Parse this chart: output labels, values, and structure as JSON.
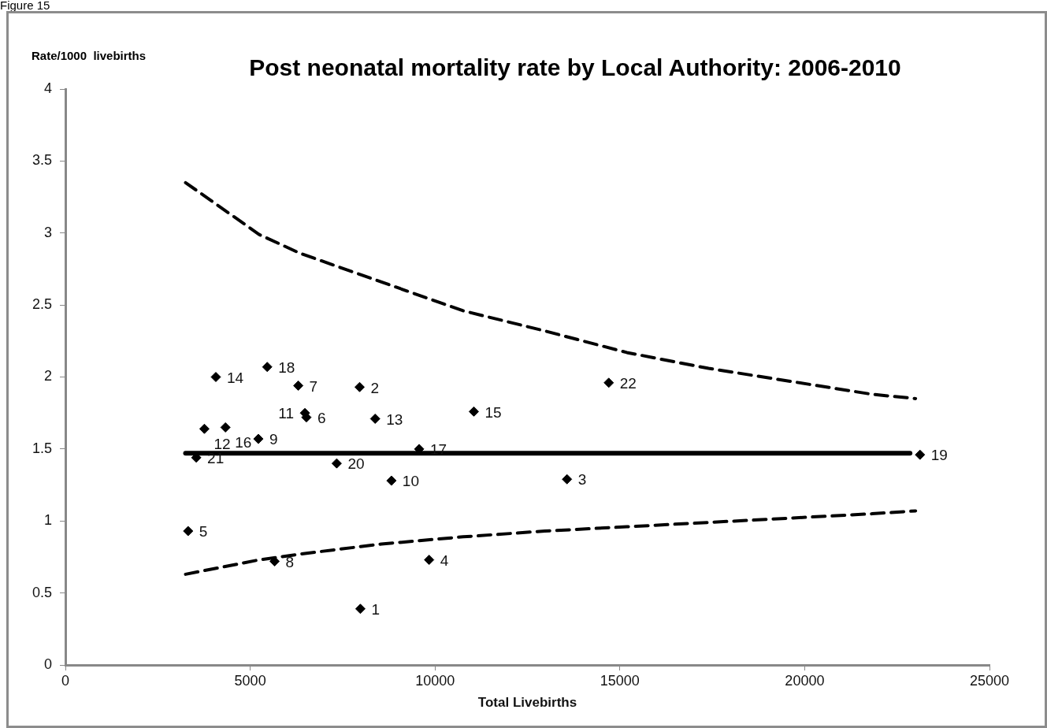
{
  "chart_data": {
    "type": "scatter",
    "title": "Post neonatal mortality rate by Local Authority: 2006-2010",
    "xlabel": "Total Livebirths",
    "ylabel": "Rate/1000  livebirths",
    "annotations": [
      "Figure 15",
      {
        "text": "1",
        "x": 7980,
        "y": 0.39
      },
      {
        "text": "2",
        "x": 7960,
        "y": 1.93
      },
      {
        "text": "3",
        "x": 13570,
        "y": 1.29
      },
      {
        "text": "4",
        "x": 9840,
        "y": 0.73
      },
      {
        "text": "5",
        "x": 3320,
        "y": 0.93
      },
      {
        "text": "6",
        "x": 6520,
        "y": 1.72
      },
      {
        "text": "7",
        "x": 6300,
        "y": 1.94
      },
      {
        "text": "8",
        "x": 5660,
        "y": 0.72
      },
      {
        "text": "9",
        "x": 5220,
        "y": 1.57
      },
      {
        "text": "10",
        "x": 8820,
        "y": 1.28
      },
      {
        "text": "11",
        "x": 6480,
        "y": 1.75
      },
      {
        "text": "12",
        "x": 3760,
        "y": 1.64
      },
      {
        "text": "13",
        "x": 8380,
        "y": 1.71
      },
      {
        "text": "14",
        "x": 4070,
        "y": 2.0
      },
      {
        "text": "15",
        "x": 11050,
        "y": 1.76
      },
      {
        "text": "16",
        "x": 4330,
        "y": 1.65
      },
      {
        "text": "17",
        "x": 9570,
        "y": 1.5
      },
      {
        "text": "18",
        "x": 5460,
        "y": 2.07
      },
      {
        "text": "19",
        "x": 23120,
        "y": 1.46
      },
      {
        "text": "20",
        "x": 7340,
        "y": 1.4
      },
      {
        "text": "21",
        "x": 3540,
        "y": 1.44
      },
      {
        "text": "22",
        "x": 14700,
        "y": 1.96
      }
    ],
    "xlim": [
      0,
      25000
    ],
    "xticks": [
      0,
      5000,
      10000,
      15000,
      20000,
      25000
    ],
    "ylim": [
      0,
      4
    ],
    "yticks": [
      0,
      0.5,
      1,
      1.5,
      2,
      2.5,
      3,
      3.5,
      4
    ],
    "marker": "diamond",
    "series": [
      {
        "color": "#000000",
        "x": [
          7980,
          7960,
          13570,
          9840,
          3320,
          6520,
          6300,
          5660,
          5220,
          8820,
          6480,
          3760,
          8380,
          4070,
          11050,
          4330,
          9570,
          5460,
          23120,
          7340,
          3540,
          14700
        ],
        "values": [
          0.39,
          1.93,
          1.29,
          0.73,
          0.93,
          1.72,
          1.94,
          0.72,
          1.57,
          1.28,
          1.75,
          1.64,
          1.71,
          2.0,
          1.76,
          1.65,
          1.5,
          2.07,
          1.46,
          1.4,
          1.44,
          1.96
        ]
      },
      {
        "type": "line",
        "color": "#000000",
        "marker": "none",
        "line_style": "solid",
        "x": [
          3250,
          22850
        ],
        "values": [
          1.47,
          1.47
        ]
      },
      {
        "type": "line",
        "color": "#000000",
        "marker": "none",
        "line_style": "dashed",
        "x": [
          3250,
          5240,
          6340,
          8550,
          10760,
          12970,
          15190,
          17400,
          19610,
          21820,
          23000
        ],
        "values": [
          3.35,
          2.99,
          2.86,
          2.66,
          2.46,
          2.32,
          2.17,
          2.06,
          1.97,
          1.88,
          1.85
        ]
      },
      {
        "type": "line",
        "color": "#000000",
        "marker": "none",
        "line_style": "dashed",
        "x": [
          3250,
          5240,
          6340,
          8550,
          10760,
          12970,
          15190,
          17400,
          19610,
          21820,
          23000
        ],
        "values": [
          0.63,
          0.73,
          0.77,
          0.84,
          0.89,
          0.93,
          0.96,
          0.99,
          1.02,
          1.05,
          1.07
        ]
      }
    ]
  }
}
